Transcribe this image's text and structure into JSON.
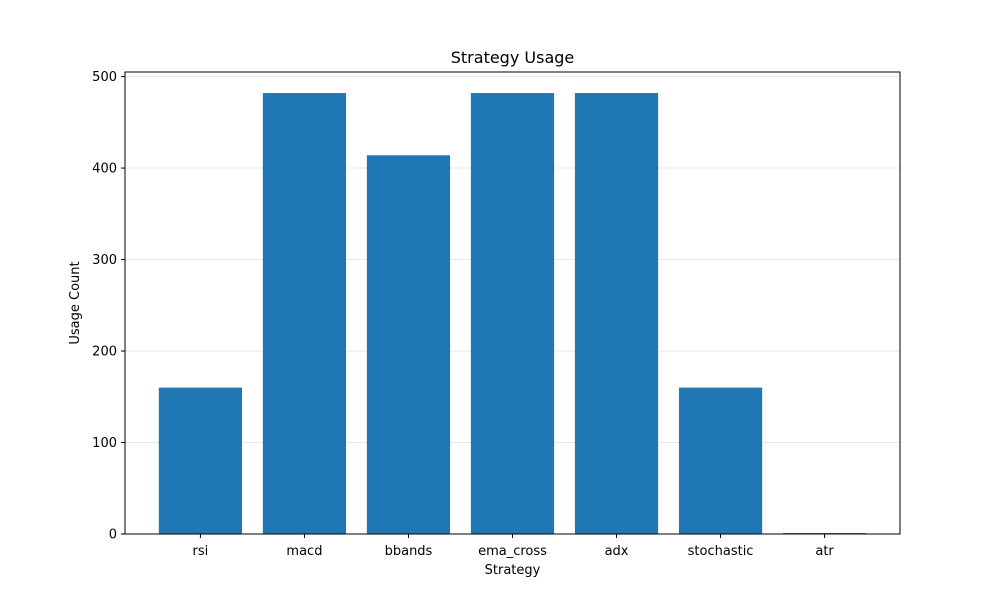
{
  "chart_data": {
    "type": "bar",
    "title": "Strategy Usage",
    "xlabel": "Strategy",
    "ylabel": "Usage Count",
    "categories": [
      "rsi",
      "macd",
      "bbands",
      "ema_cross",
      "adx",
      "stochastic",
      "atr"
    ],
    "values": [
      160,
      482,
      414,
      482,
      482,
      160,
      1
    ],
    "ylim": [
      0,
      505
    ],
    "yticks": [
      0,
      100,
      200,
      300,
      400,
      500
    ],
    "grid": true,
    "grid_axis": "y",
    "legend": "none",
    "bar_color": "#1f77b4"
  }
}
